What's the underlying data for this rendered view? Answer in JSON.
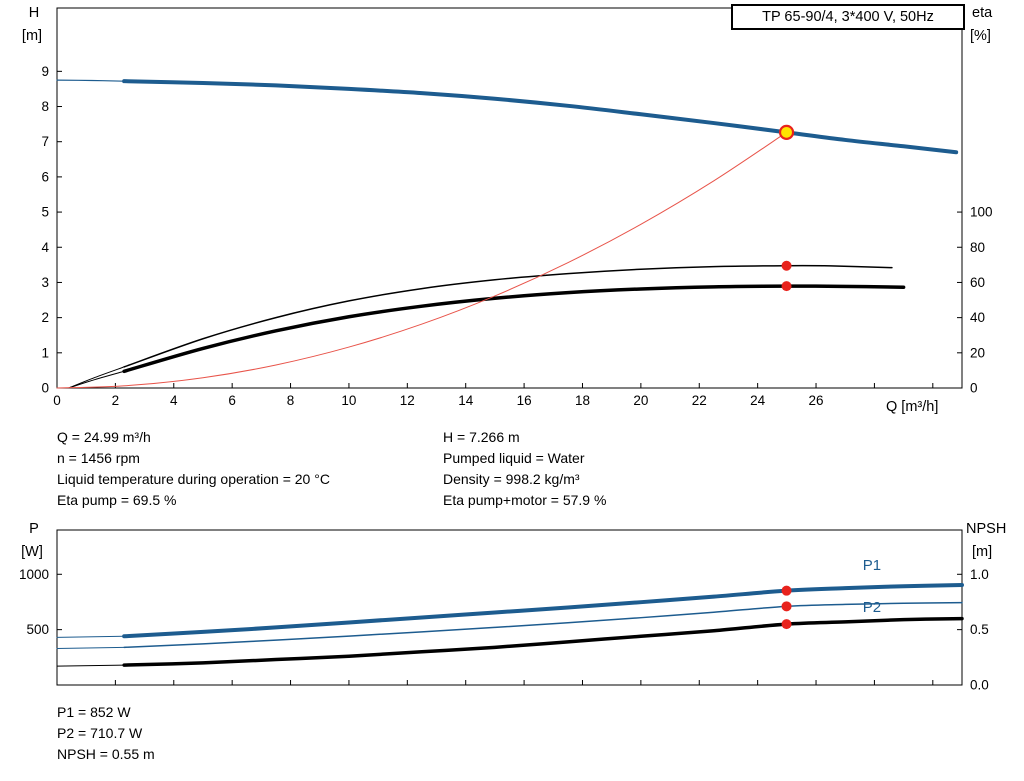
{
  "title_box": "TP 65-90/4, 3*400 V, 50Hz",
  "info_top": {
    "left": [
      "Q = 24.99 m³/h",
      "n = 1456 rpm",
      "Liquid temperature during operation = 20 °C",
      "Eta pump = 69.5 %"
    ],
    "right": [
      "H = 7.266 m",
      "Pumped liquid = Water",
      "Density = 998.2 kg/m³",
      "Eta pump+motor = 57.9 %"
    ]
  },
  "info_bottom": [
    "P1 = 852 W",
    "P2 = 710.7 W",
    "NPSH = 0.55 m"
  ],
  "colors": {
    "curve_blue": "#1d5c8f",
    "curve_black": "#000000",
    "system_red": "#e8544a",
    "marker_red": "#e8231d",
    "marker_yellow": "#ffe400"
  },
  "chart_data": [
    {
      "id": "hq-chart",
      "type": "line",
      "title": "TP 65-90/4, 3*400 V, 50Hz",
      "x_axis": {
        "label": "Q [m³/h]",
        "min": 0,
        "max": 31,
        "ticks": [
          0,
          2,
          4,
          6,
          8,
          10,
          12,
          14,
          16,
          18,
          20,
          22,
          24,
          26
        ],
        "minor_ticks": [
          28,
          30
        ],
        "show_labels": true
      },
      "y_left": {
        "label": "H",
        "unit": "[m]",
        "min": 0,
        "max": 10.8,
        "ticks": [
          0,
          1,
          2,
          3,
          4,
          5,
          6,
          7,
          8,
          9
        ]
      },
      "y_right": {
        "label": "eta",
        "unit": "[%]",
        "min": 0,
        "max": 216,
        "ticks": [
          0,
          20,
          40,
          60,
          80,
          100
        ]
      },
      "series": [
        {
          "name": "eta-pump-lead",
          "axis": "right",
          "color": "#000000",
          "width": 1,
          "points": [
            [
              0.4,
              0
            ],
            [
              1.3,
              6
            ],
            [
              2.3,
              12
            ]
          ]
        },
        {
          "name": "eta-pump-motor-lead",
          "axis": "right",
          "color": "#000000",
          "width": 1,
          "points": [
            [
              0.4,
              0
            ],
            [
              1.3,
              4.8
            ],
            [
              2.3,
              9.5
            ]
          ]
        },
        {
          "name": "eta-pump-curve",
          "axis": "right",
          "color": "#000000",
          "width": 1.5,
          "points": [
            [
              2.3,
              12
            ],
            [
              5,
              28
            ],
            [
              7.5,
              40
            ],
            [
              10,
              49.5
            ],
            [
              12.5,
              56.5
            ],
            [
              15,
              61.5
            ],
            [
              17.5,
              65
            ],
            [
              20,
              67.5
            ],
            [
              22.5,
              69
            ],
            [
              24.99,
              69.5
            ],
            [
              26.5,
              69.4
            ],
            [
              28.6,
              68.4
            ]
          ]
        },
        {
          "name": "eta-pump-motor-curve",
          "axis": "right",
          "color": "#000000",
          "width": 3.5,
          "points": [
            [
              2.3,
              9.5
            ],
            [
              5,
              22.5
            ],
            [
              7.5,
              32.5
            ],
            [
              10,
              40.5
            ],
            [
              12.5,
              46.5
            ],
            [
              15,
              51
            ],
            [
              17.5,
              54.2
            ],
            [
              20,
              56.3
            ],
            [
              22.5,
              57.5
            ],
            [
              24.99,
              57.9
            ],
            [
              26.8,
              57.8
            ],
            [
              29,
              57.3
            ]
          ]
        },
        {
          "name": "h-curve-lead",
          "axis": "left",
          "color": "#1d5c8f",
          "width": 1.2,
          "points": [
            [
              0,
              8.75
            ],
            [
              1.2,
              8.74
            ],
            [
              2.3,
              8.72
            ]
          ]
        },
        {
          "name": "h-curve",
          "axis": "left",
          "color": "#1d5c8f",
          "width": 4,
          "points": [
            [
              2.3,
              8.72
            ],
            [
              5,
              8.67
            ],
            [
              7.5,
              8.6
            ],
            [
              10,
              8.5
            ],
            [
              12.5,
              8.38
            ],
            [
              15,
              8.22
            ],
            [
              17.5,
              8.02
            ],
            [
              20,
              7.78
            ],
            [
              22.5,
              7.53
            ],
            [
              24.99,
              7.266
            ],
            [
              27,
              7.05
            ],
            [
              29,
              6.87
            ],
            [
              30.8,
              6.7
            ]
          ]
        },
        {
          "name": "system-curve",
          "axis": "left",
          "color": "#e8544a",
          "width": 1,
          "points": [
            [
              0,
              0
            ],
            [
              2.5,
              0.073
            ],
            [
              5,
              0.291
            ],
            [
              7.5,
              0.654
            ],
            [
              10,
              1.163
            ],
            [
              12.5,
              1.817
            ],
            [
              15,
              2.617
            ],
            [
              17.5,
              3.562
            ],
            [
              20,
              4.652
            ],
            [
              22.5,
              5.888
            ],
            [
              24.99,
              7.266
            ]
          ]
        }
      ],
      "markers": [
        {
          "name": "duty-point-marker",
          "axis": "left",
          "q": 24.99,
          "v": 7.266,
          "r": 6.5,
          "fill": "#ffe400",
          "stroke": "#e8231d",
          "interactable": true
        },
        {
          "name": "eta-pump-point",
          "axis": "right",
          "q": 24.99,
          "v": 69.5,
          "r": 5,
          "fill": "#e8231d"
        },
        {
          "name": "eta-pump-motor-point",
          "axis": "right",
          "q": 24.99,
          "v": 57.9,
          "r": 5,
          "fill": "#e8231d"
        }
      ]
    },
    {
      "id": "power-npsh-chart",
      "type": "line",
      "x_axis": {
        "min": 0,
        "max": 31,
        "ticks": [
          0,
          2,
          4,
          6,
          8,
          10,
          12,
          14,
          16,
          18,
          20,
          22,
          24,
          26
        ],
        "minor_ticks": [
          28,
          30
        ],
        "show_labels": false
      },
      "y_left": {
        "label": "P",
        "unit": "[W]",
        "min": 0,
        "max": 1400,
        "ticks": [
          500,
          1000
        ]
      },
      "y_right": {
        "label": "NPSH",
        "unit": "[m]",
        "min": 0,
        "max": 1.4,
        "ticks": [
          {
            "v": 0,
            "label": "0.0"
          },
          {
            "v": 0.5,
            "label": "0.5"
          },
          {
            "v": 1,
            "label": "1.0"
          }
        ]
      },
      "series": [
        {
          "name": "p2-lead",
          "axis": "left",
          "color": "#1d5c8f",
          "width": 1,
          "points": [
            [
              0,
              330
            ],
            [
              2.3,
              340
            ]
          ]
        },
        {
          "name": "p2-curve",
          "axis": "left",
          "color": "#1d5c8f",
          "width": 1.5,
          "points": [
            [
              2.3,
              340
            ],
            [
              5,
              372
            ],
            [
              7.5,
              405
            ],
            [
              10,
              442
            ],
            [
              12.5,
              480
            ],
            [
              15,
              520
            ],
            [
              17.5,
              562
            ],
            [
              20,
              608
            ],
            [
              22.5,
              657
            ],
            [
              24.99,
              710.7
            ],
            [
              27,
              728
            ],
            [
              29,
              738
            ],
            [
              31,
              744
            ]
          ]
        },
        {
          "name": "p1-lead",
          "axis": "left",
          "color": "#1d5c8f",
          "width": 1,
          "points": [
            [
              0,
              430
            ],
            [
              2.3,
              440
            ]
          ]
        },
        {
          "name": "p1-curve",
          "axis": "left",
          "color": "#1d5c8f",
          "width": 4,
          "points": [
            [
              2.3,
              440
            ],
            [
              5,
              480
            ],
            [
              7.5,
              520
            ],
            [
              10,
              565
            ],
            [
              12.5,
              610
            ],
            [
              15,
              655
            ],
            [
              17.5,
              700
            ],
            [
              20,
              748
            ],
            [
              22.5,
              798
            ],
            [
              24.99,
              852
            ],
            [
              27,
              875
            ],
            [
              29,
              892
            ],
            [
              31,
              903
            ]
          ]
        },
        {
          "name": "npsh-lead",
          "axis": "right",
          "color": "#000000",
          "width": 1,
          "points": [
            [
              0,
              0.17
            ],
            [
              2.3,
              0.18
            ]
          ]
        },
        {
          "name": "npsh-curve",
          "axis": "right",
          "color": "#000000",
          "width": 3.5,
          "points": [
            [
              2.3,
              0.18
            ],
            [
              5,
              0.2
            ],
            [
              7.5,
              0.23
            ],
            [
              10,
              0.26
            ],
            [
              12.5,
              0.3
            ],
            [
              15,
              0.34
            ],
            [
              17.5,
              0.39
            ],
            [
              20,
              0.44
            ],
            [
              22.5,
              0.49
            ],
            [
              24.99,
              0.55
            ],
            [
              27,
              0.57
            ],
            [
              29,
              0.59
            ],
            [
              31,
              0.6
            ]
          ]
        }
      ],
      "series_labels": [
        {
          "name": "p1-curve-label",
          "text": "P1",
          "axis": "left",
          "q": 27.6,
          "v": 1040,
          "color": "#1d5c8f"
        },
        {
          "name": "p2-curve-label",
          "text": "P2",
          "axis": "left",
          "q": 27.6,
          "v": 660,
          "color": "#1d5c8f"
        }
      ],
      "markers": [
        {
          "name": "p1-point",
          "axis": "left",
          "q": 24.99,
          "v": 852,
          "r": 5,
          "fill": "#e8231d"
        },
        {
          "name": "p2-point",
          "axis": "left",
          "q": 24.99,
          "v": 710.7,
          "r": 5,
          "fill": "#e8231d"
        },
        {
          "name": "npsh-point",
          "axis": "right",
          "q": 24.99,
          "v": 0.55,
          "r": 5,
          "fill": "#e8231d"
        }
      ]
    }
  ]
}
